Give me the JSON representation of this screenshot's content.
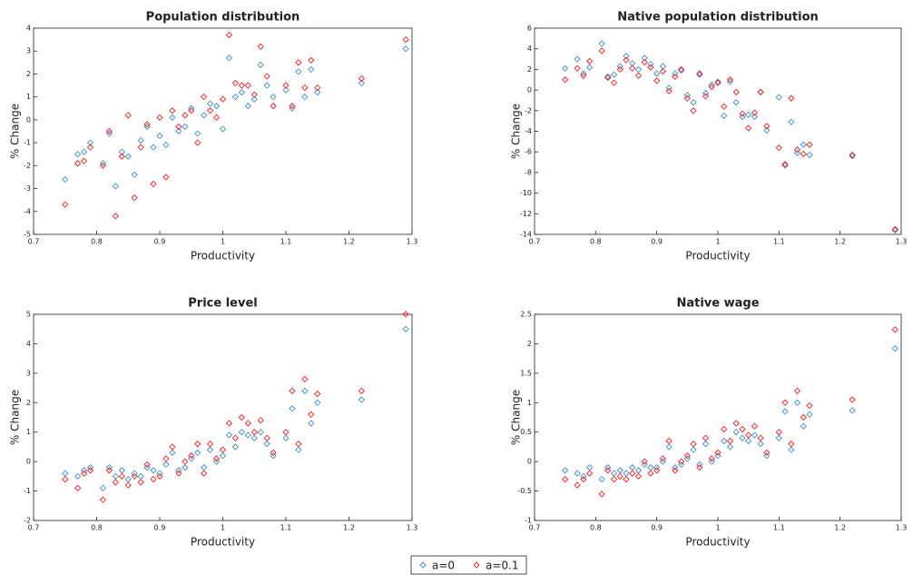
{
  "chart_data": [
    {
      "type": "scatter",
      "title": "Population distribution",
      "xlabel": "Productivity",
      "ylabel": "% Change",
      "xlim": [
        0.7,
        1.3
      ],
      "xticks": [
        0.7,
        0.8,
        0.9,
        1,
        1.1,
        1.2,
        1.3
      ],
      "ylim": [
        -5,
        4
      ],
      "yticks": [
        -5,
        -4,
        -3,
        -2,
        -1,
        0,
        1,
        2,
        3,
        4
      ],
      "x": [
        0.75,
        0.77,
        0.78,
        0.79,
        0.81,
        0.82,
        0.83,
        0.84,
        0.85,
        0.86,
        0.87,
        0.88,
        0.89,
        0.9,
        0.91,
        0.92,
        0.93,
        0.94,
        0.95,
        0.96,
        0.97,
        0.98,
        0.99,
        1.0,
        1.01,
        1.02,
        1.03,
        1.04,
        1.05,
        1.06,
        1.07,
        1.08,
        1.1,
        1.11,
        1.12,
        1.13,
        1.14,
        1.15,
        1.22,
        1.29
      ],
      "series": [
        {
          "name": "a=0",
          "color": "#3a8fd0",
          "values": [
            -2.6,
            -1.5,
            -1.4,
            -1.0,
            -1.9,
            -0.6,
            -2.9,
            -1.4,
            -1.6,
            -2.4,
            -0.9,
            -0.3,
            -1.2,
            -0.7,
            -1.1,
            0.1,
            -0.5,
            -0.3,
            0.5,
            -0.6,
            0.2,
            0.7,
            0.6,
            -0.4,
            2.7,
            1.0,
            1.2,
            0.6,
            0.9,
            2.4,
            1.5,
            1.0,
            1.3,
            0.5,
            2.1,
            1.0,
            2.2,
            1.2,
            1.6,
            3.1
          ]
        },
        {
          "name": "a=0.1",
          "color": "#ff1a1a",
          "values": [
            -3.7,
            -1.9,
            -1.8,
            -1.2,
            -2.0,
            -0.5,
            -4.2,
            -1.6,
            0.2,
            -3.4,
            -1.2,
            -0.2,
            -2.8,
            0.1,
            -2.5,
            0.4,
            -0.3,
            0.2,
            0.4,
            -1.0,
            1.0,
            0.4,
            0.1,
            0.9,
            3.7,
            1.6,
            1.5,
            1.5,
            1.1,
            3.2,
            1.9,
            0.6,
            1.5,
            0.6,
            2.5,
            1.4,
            2.6,
            1.4,
            1.8,
            3.5
          ]
        }
      ]
    },
    {
      "type": "scatter",
      "title": "Native population distribution",
      "xlabel": "Productivity",
      "ylabel": "% Change",
      "xlim": [
        0.7,
        1.3
      ],
      "xticks": [
        0.7,
        0.8,
        0.9,
        1,
        1.1,
        1.2,
        1.3
      ],
      "ylim": [
        -14,
        6
      ],
      "yticks": [
        -14,
        -12,
        -10,
        -8,
        -6,
        -4,
        -2,
        0,
        2,
        4,
        6
      ],
      "x": [
        0.75,
        0.77,
        0.78,
        0.79,
        0.81,
        0.82,
        0.83,
        0.84,
        0.85,
        0.86,
        0.87,
        0.88,
        0.89,
        0.9,
        0.91,
        0.92,
        0.93,
        0.94,
        0.95,
        0.96,
        0.97,
        0.98,
        0.99,
        1.0,
        1.01,
        1.02,
        1.03,
        1.04,
        1.05,
        1.06,
        1.07,
        1.08,
        1.1,
        1.11,
        1.12,
        1.13,
        1.14,
        1.15,
        1.22,
        1.29
      ],
      "series": [
        {
          "color": "#3a8fd0",
          "values": [
            2.1,
            3.0,
            1.6,
            2.2,
            4.5,
            1.3,
            1.5,
            2.3,
            3.3,
            2.6,
            2.0,
            3.1,
            2.5,
            1.6,
            2.3,
            0.2,
            1.6,
            1.9,
            -0.5,
            -1.2,
            1.5,
            -0.3,
            0.5,
            0.8,
            -2.5,
            0.8,
            -1.2,
            -2.6,
            -2.4,
            -2.6,
            -0.2,
            -3.9,
            -0.7,
            -7.3,
            -3.1,
            -6.1,
            -5.3,
            -6.3,
            -6.4,
            -13.6
          ]
        },
        {
          "color": "#ff1a1a",
          "values": [
            1.0,
            2.1,
            1.4,
            2.8,
            3.8,
            1.2,
            0.7,
            2.0,
            2.9,
            2.1,
            1.4,
            2.7,
            2.2,
            0.9,
            1.8,
            -0.1,
            1.3,
            2.0,
            -0.8,
            -2.0,
            1.6,
            -0.6,
            0.3,
            0.7,
            -1.6,
            1.0,
            -0.2,
            -2.3,
            -3.7,
            -2.2,
            -0.2,
            -3.5,
            -5.6,
            -7.2,
            -0.8,
            -5.8,
            -6.2,
            -5.3,
            -6.3,
            -13.5
          ]
        }
      ]
    },
    {
      "type": "scatter",
      "title": "Price level",
      "xlabel": "Productivity",
      "ylabel": "% Change",
      "xlim": [
        0.7,
        1.3
      ],
      "xticks": [
        0.7,
        0.8,
        0.9,
        1,
        1.1,
        1.2,
        1.3
      ],
      "ylim": [
        -2,
        5
      ],
      "yticks": [
        -2,
        -1,
        0,
        1,
        2,
        3,
        4,
        5
      ],
      "x": [
        0.75,
        0.77,
        0.78,
        0.79,
        0.81,
        0.82,
        0.83,
        0.84,
        0.85,
        0.86,
        0.87,
        0.88,
        0.89,
        0.9,
        0.91,
        0.92,
        0.93,
        0.94,
        0.95,
        0.96,
        0.97,
        0.98,
        0.99,
        1.0,
        1.01,
        1.02,
        1.03,
        1.04,
        1.05,
        1.06,
        1.07,
        1.08,
        1.1,
        1.11,
        1.12,
        1.13,
        1.14,
        1.15,
        1.22,
        1.29
      ],
      "series": [
        {
          "color": "#3a8fd0",
          "values": [
            -0.4,
            -0.5,
            -0.3,
            -0.2,
            -0.9,
            -0.2,
            -0.5,
            -0.3,
            -0.6,
            -0.4,
            -0.5,
            -0.2,
            -0.3,
            -0.4,
            -0.1,
            0.3,
            -0.3,
            -0.2,
            0.1,
            0.3,
            -0.2,
            0.4,
            0.0,
            0.2,
            0.9,
            0.5,
            1.0,
            0.9,
            0.8,
            1.0,
            0.6,
            0.2,
            0.8,
            1.8,
            0.4,
            2.4,
            1.3,
            2.0,
            2.1,
            4.5
          ]
        },
        {
          "color": "#ff1a1a",
          "values": [
            -0.6,
            -0.9,
            -0.4,
            -0.3,
            -1.3,
            -0.3,
            -0.7,
            -0.5,
            -0.8,
            -0.5,
            -0.7,
            -0.1,
            -0.6,
            -0.5,
            0.1,
            0.5,
            -0.4,
            0.0,
            0.2,
            0.6,
            -0.4,
            0.6,
            0.1,
            0.4,
            1.3,
            0.8,
            1.5,
            1.3,
            1.0,
            1.4,
            0.8,
            0.3,
            1.0,
            2.4,
            0.6,
            2.8,
            1.6,
            2.3,
            2.4,
            5.0
          ]
        }
      ]
    },
    {
      "type": "scatter",
      "title": "Native wage",
      "xlabel": "Productivity",
      "ylabel": "% Change",
      "xlim": [
        0.7,
        1.3
      ],
      "xticks": [
        0.7,
        0.8,
        0.9,
        1,
        1.1,
        1.2,
        1.3
      ],
      "ylim": [
        -1,
        2.5
      ],
      "yticks": [
        -1,
        -0.5,
        0,
        0.5,
        1,
        1.5,
        2,
        2.5
      ],
      "x": [
        0.75,
        0.77,
        0.78,
        0.79,
        0.81,
        0.82,
        0.83,
        0.84,
        0.85,
        0.86,
        0.87,
        0.88,
        0.89,
        0.9,
        0.91,
        0.92,
        0.93,
        0.94,
        0.95,
        0.96,
        0.97,
        0.98,
        0.99,
        1.0,
        1.01,
        1.02,
        1.03,
        1.04,
        1.05,
        1.06,
        1.07,
        1.08,
        1.1,
        1.11,
        1.12,
        1.13,
        1.14,
        1.15,
        1.22,
        1.29
      ],
      "series": [
        {
          "color": "#3a8fd0",
          "values": [
            -0.15,
            -0.2,
            -0.25,
            -0.1,
            -0.3,
            -0.1,
            -0.2,
            -0.15,
            -0.2,
            -0.1,
            -0.15,
            -0.05,
            -0.1,
            -0.1,
            0.0,
            0.25,
            -0.1,
            -0.05,
            0.05,
            0.2,
            -0.05,
            0.3,
            0.0,
            0.1,
            0.35,
            0.25,
            0.5,
            0.4,
            0.35,
            0.45,
            0.3,
            0.1,
            0.4,
            0.85,
            0.2,
            1.0,
            0.6,
            0.8,
            0.87,
            1.92
          ]
        },
        {
          "color": "#ff1a1a",
          "values": [
            -0.3,
            -0.4,
            -0.3,
            -0.2,
            -0.55,
            -0.15,
            -0.3,
            -0.25,
            -0.3,
            -0.2,
            -0.25,
            0.0,
            -0.2,
            -0.15,
            0.05,
            0.35,
            -0.15,
            0.0,
            0.1,
            0.3,
            -0.1,
            0.4,
            0.05,
            0.15,
            0.55,
            0.35,
            0.65,
            0.55,
            0.45,
            0.6,
            0.4,
            0.15,
            0.5,
            1.0,
            0.3,
            1.2,
            0.75,
            0.95,
            1.05,
            2.24
          ]
        }
      ]
    }
  ]
}
